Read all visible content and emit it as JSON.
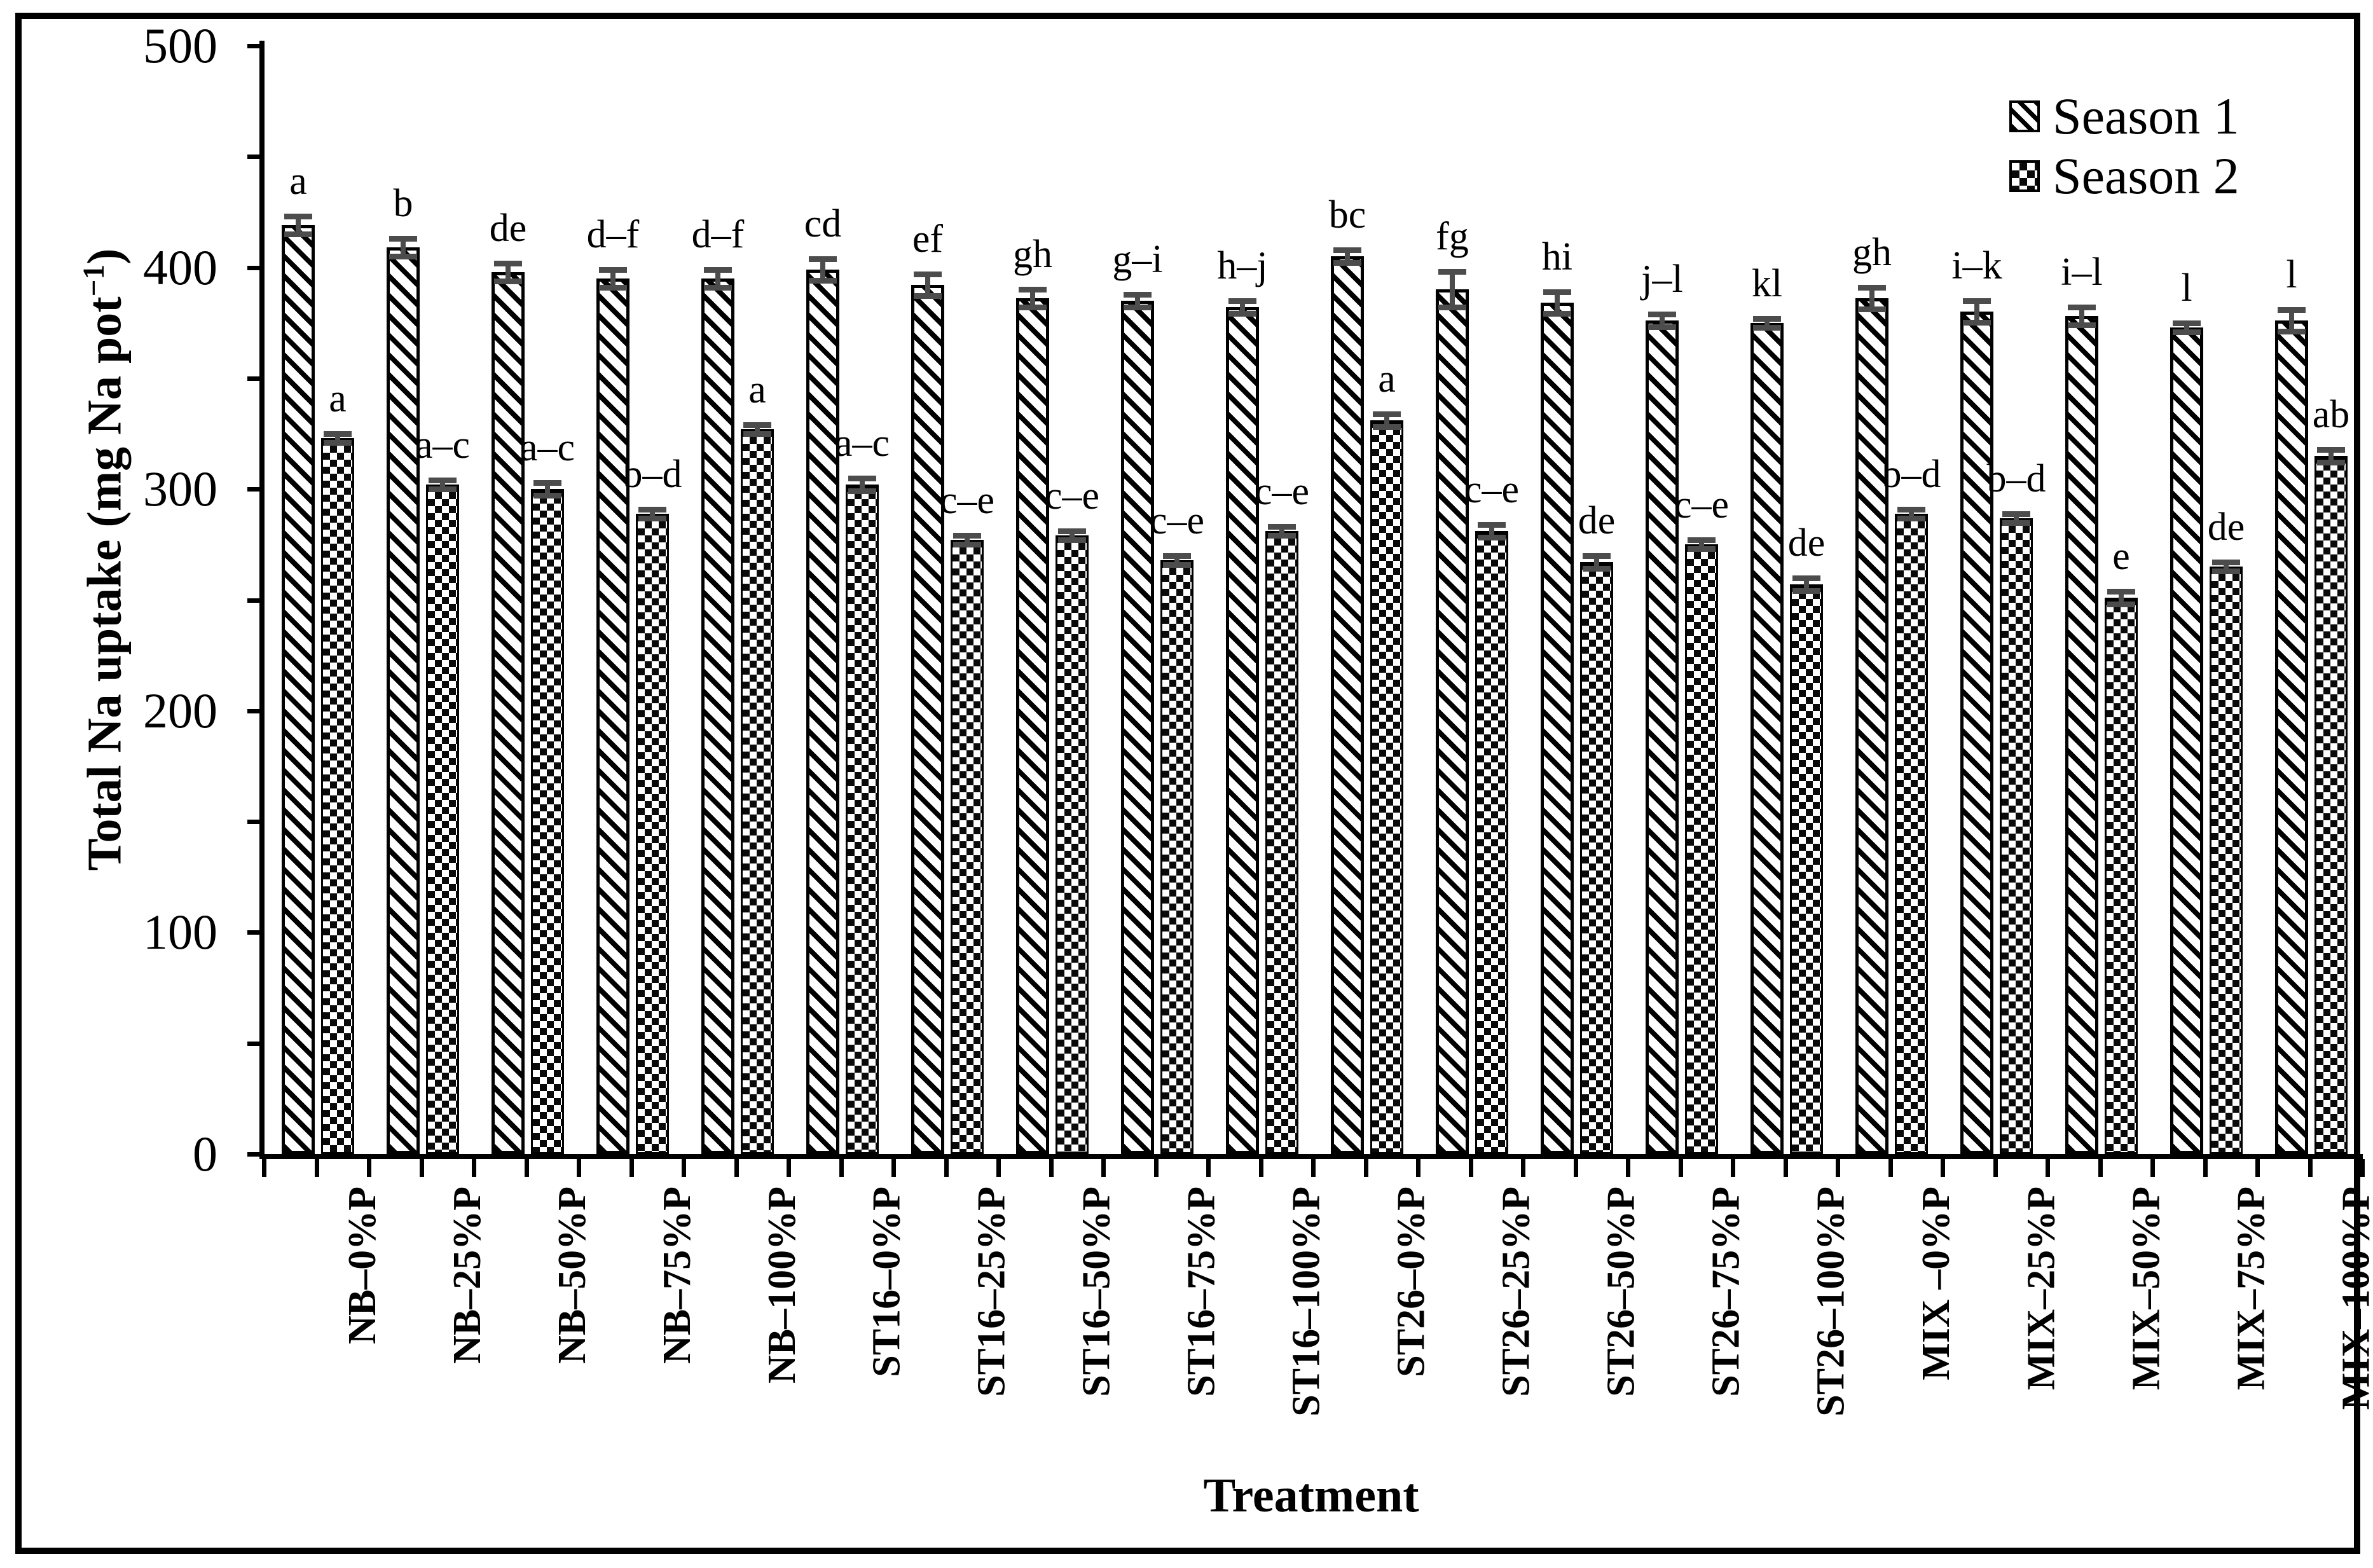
{
  "figure": {
    "background": "#ffffff",
    "border_color": "#000000",
    "text_color": "#000000",
    "error_bar_color": "#4c4c4c"
  },
  "legend": {
    "items": [
      {
        "label": "Season 1",
        "pattern": "hatch",
        "swatch_icon": "diagonal-hatch-swatch"
      },
      {
        "label": "Season 2",
        "pattern": "checker",
        "swatch_icon": "checkerboard-swatch"
      }
    ]
  },
  "y_axis": {
    "title_prefix": "Total Na uptake (mg Na pot",
    "title_sup": "−1",
    "title_suffix": ")",
    "major_tick_labels": [
      "0",
      "100",
      "200",
      "300",
      "400",
      "500"
    ],
    "minor_step": 50,
    "range": [
      0,
      500
    ]
  },
  "x_axis": {
    "title": "Treatment"
  },
  "chart_data": {
    "type": "bar",
    "title": "",
    "xlabel": "Treatment",
    "ylabel": "Total Na uptake (mg Na pot⁻¹)",
    "ylim": [
      0,
      500
    ],
    "y_major_ticks": [
      0,
      100,
      200,
      300,
      400,
      500
    ],
    "y_minor_step": 50,
    "grid": false,
    "legend_position": "top-right",
    "categories": [
      "NB–0%P",
      "NB–25%P",
      "NB–50%P",
      "NB–75%P",
      "NB–100%P",
      "ST16–0%P",
      "ST16–25%P",
      "ST16–50%P",
      "ST16–75%P",
      "ST16–100%P",
      "ST26–0%P",
      "ST26–25%P",
      "ST26–50%P",
      "ST26–75%P",
      "ST26–100%P",
      "MIX –0%P",
      "MIX–25%P",
      "MIX–50%P",
      "MIX–75%P",
      "MIX–100%P"
    ],
    "series": [
      {
        "name": "Season 1",
        "values": [
          419,
          409,
          398,
          395,
          395,
          399,
          392,
          386,
          385,
          382,
          405,
          390,
          384,
          376,
          375,
          386,
          380,
          378,
          373,
          376
        ],
        "errors": [
          4,
          4,
          4,
          4,
          4,
          5,
          5,
          4,
          3,
          3,
          3,
          8,
          5,
          3,
          2,
          5,
          5,
          4,
          2,
          5
        ],
        "letters": [
          "a",
          "b",
          "de",
          "d–f",
          "d–f",
          "cd",
          "ef",
          "gh",
          "g–i",
          "h–j",
          "bc",
          "fg",
          "hi",
          "j–l",
          "kl",
          "gh",
          "i–k",
          "i–l",
          "l",
          "l"
        ]
      },
      {
        "name": "Season 2",
        "values": [
          323,
          302,
          300,
          289,
          327,
          302,
          277,
          279,
          268,
          281,
          331,
          281,
          267,
          275,
          257,
          289,
          287,
          251,
          265,
          315
        ],
        "errors": [
          2,
          2,
          3,
          2,
          2,
          3,
          2,
          2,
          2,
          2,
          3,
          3,
          3,
          2,
          3,
          2,
          2,
          3,
          2,
          3
        ],
        "letters": [
          "a",
          "a–c",
          "a–c",
          "b–d",
          "a",
          "a–c",
          "c–e",
          "c–e",
          "c–e",
          "c–e",
          "a",
          "c–e",
          "de",
          "c–e",
          "de",
          "b–d",
          "b–d",
          "e",
          "de",
          "ab"
        ]
      }
    ]
  }
}
